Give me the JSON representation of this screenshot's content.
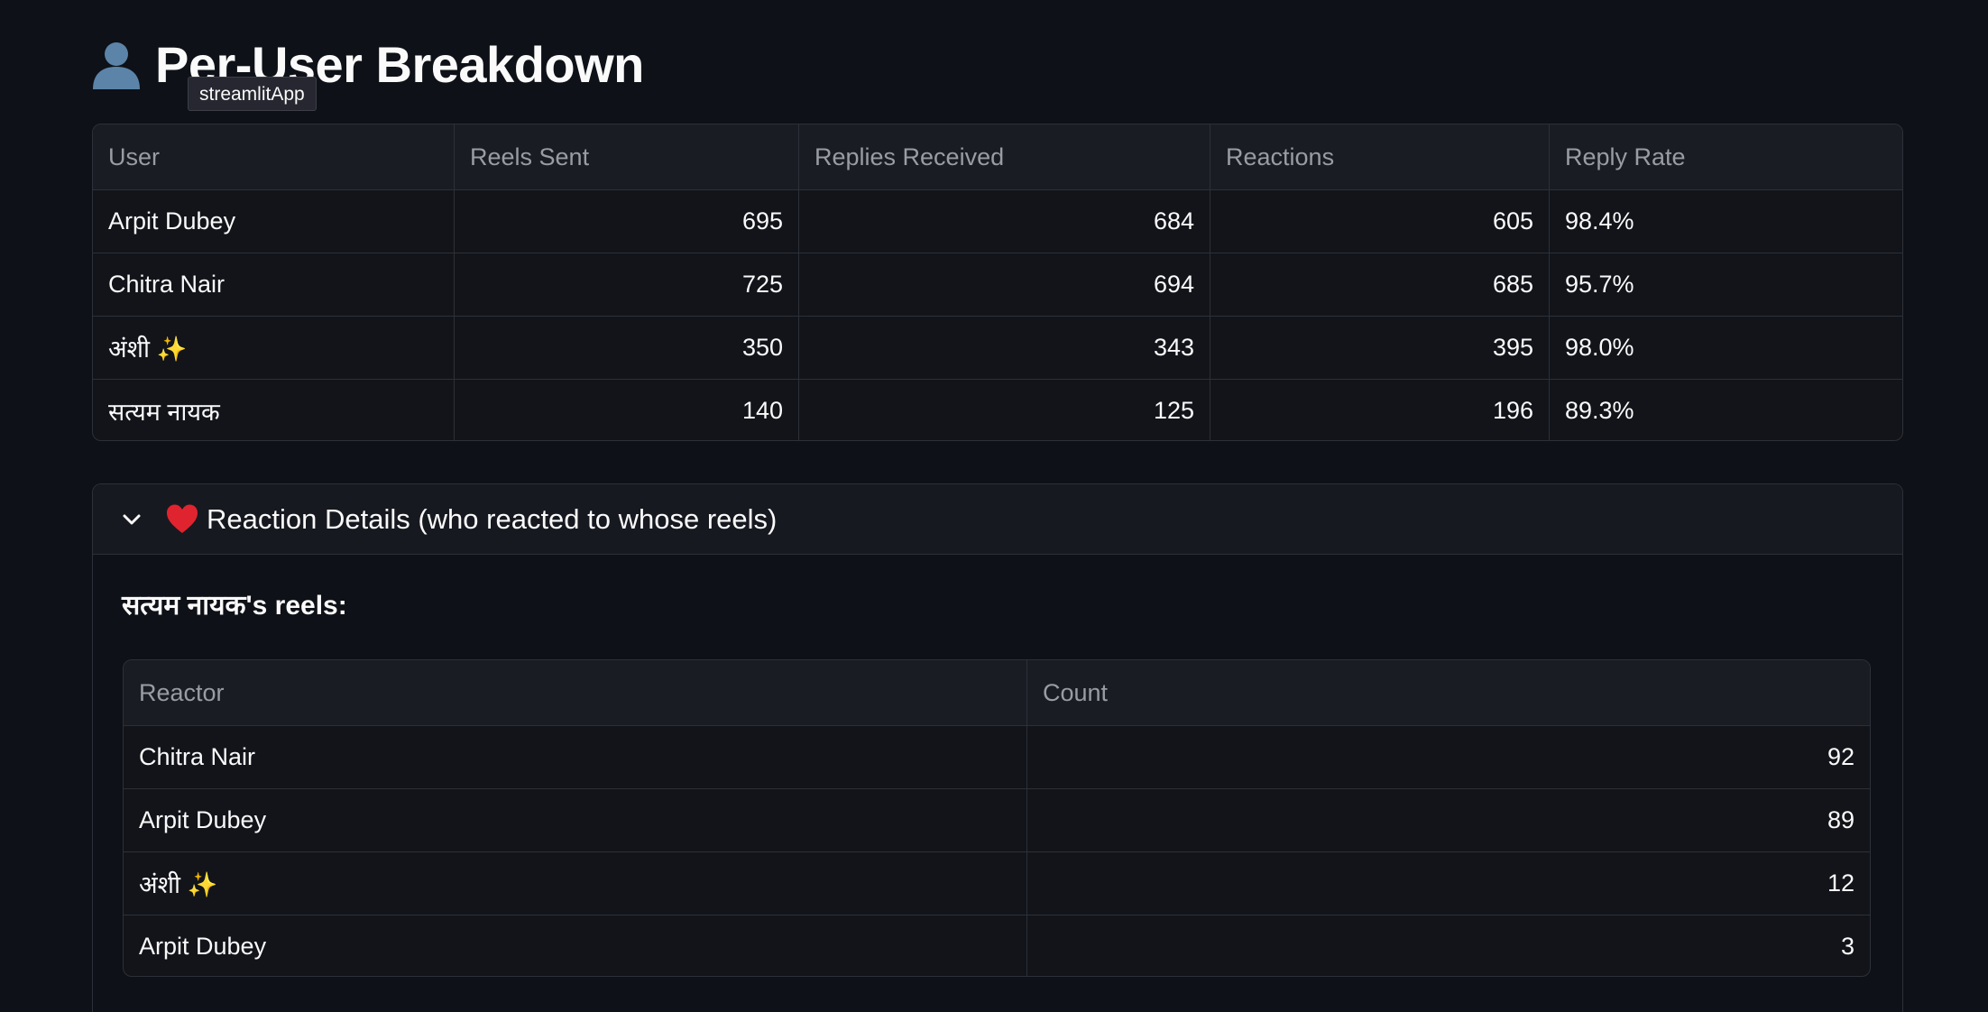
{
  "header": {
    "title": "Per-User Breakdown",
    "title_icon": "user-silhouette-icon",
    "tooltip": "streamlitApp"
  },
  "user_table": {
    "columns": [
      "User",
      "Reels Sent",
      "Replies Received",
      "Reactions",
      "Reply Rate"
    ],
    "rows": [
      [
        "Arpit Dubey",
        "695",
        "684",
        "605",
        "98.4%"
      ],
      [
        "Chitra Nair",
        "725",
        "694",
        "685",
        "95.7%"
      ],
      [
        "अंशी ✨",
        "350",
        "343",
        "395",
        "98.0%"
      ],
      [
        "सत्यम नायक",
        "140",
        "125",
        "196",
        "89.3%"
      ]
    ]
  },
  "reaction_details": {
    "expander_label": "Reaction Details (who reacted to whose reels)",
    "expander_icon": "heart-icon",
    "subheading": "सत्यम नायक's reels:",
    "columns": [
      "Reactor",
      "Count"
    ],
    "rows": [
      [
        "Chitra Nair",
        "92"
      ],
      [
        "Arpit Dubey",
        "89"
      ],
      [
        "अंशी ✨",
        "12"
      ],
      [
        "Arpit Dubey",
        "3"
      ]
    ]
  },
  "colors": {
    "background": "#0e1117",
    "table_header_bg": "#1a1c23",
    "border": "#2d3038",
    "header_text": "#9a9ca4",
    "heart": "#e0242f"
  }
}
